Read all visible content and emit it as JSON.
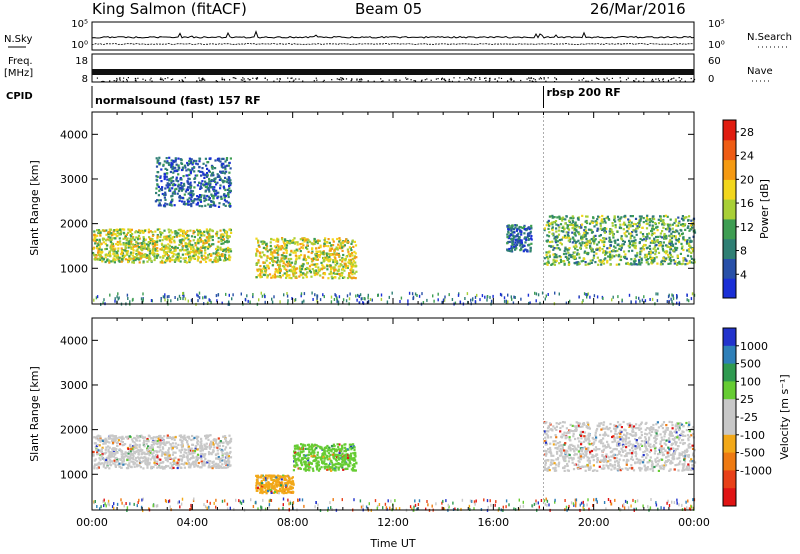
{
  "header": {
    "title": "King Salmon (fitACF)",
    "beam": "Beam 05",
    "date": "26/Mar/2016"
  },
  "summary": {
    "nsky_label": "N.Sky",
    "nsearch_label": "N.Search",
    "noise_ticks": [
      "10^5",
      "10^0"
    ],
    "freq_label": "Freq.",
    "freq_unit": "[MHz]",
    "freq_ticks": [
      "18",
      "8"
    ],
    "nave_label": "Nave",
    "nave_ticks": [
      "60",
      "0"
    ],
    "cpid_label": "CPID",
    "programs": [
      {
        "name": "normalsound (fast)",
        "cpid": "157",
        "tag": "RF",
        "label": "normalsound (fast) 157 RF",
        "start": "00:00"
      },
      {
        "name": "rbsp",
        "cpid": "200",
        "tag": "RF",
        "label": "rbsp 200 RF",
        "start": "18:00"
      }
    ]
  },
  "colors": {
    "power": [
      "#1a2fd6",
      "#2850a8",
      "#2f7f74",
      "#3e9d52",
      "#a8cf36",
      "#f2d61c",
      "#f59a12",
      "#ee5c14",
      "#e01c10"
    ],
    "velocity": [
      "#2233cc",
      "#2e7fb8",
      "#2f9a50",
      "#66cc33",
      "#c8c8c8",
      "#c8c8c8",
      "#f2a818",
      "#ee7a12",
      "#e84018",
      "#e01414"
    ]
  },
  "chart_data": [
    {
      "type": "heatmap",
      "name": "power",
      "xlabel": "",
      "ylabel": "Slant Range [km]",
      "xlim": [
        "00:00",
        "24:00"
      ],
      "ylim": [
        200,
        4500
      ],
      "yticks": [
        "1000",
        "2000",
        "3000",
        "4000"
      ],
      "grid": false,
      "colorbar": {
        "label": "Power [dB]",
        "ticks": [
          "4",
          "8",
          "12",
          "16",
          "20",
          "24",
          "28"
        ],
        "range": [
          0,
          30
        ]
      },
      "regions": [
        {
          "from": "00:00",
          "to": "05:30",
          "range_km": [
            1150,
            1900
          ],
          "level_db": 16
        },
        {
          "from": "02:30",
          "to": "05:30",
          "range_km": [
            2400,
            3500
          ],
          "level_db": 6
        },
        {
          "from": "06:30",
          "to": "10:30",
          "range_km": [
            800,
            1700
          ],
          "level_db": 17
        },
        {
          "from": "16:30",
          "to": "17:30",
          "range_km": [
            1400,
            2000
          ],
          "level_db": 6
        },
        {
          "from": "18:00",
          "to": "24:00",
          "range_km": [
            1100,
            2200
          ],
          "level_db": 12
        }
      ]
    },
    {
      "type": "heatmap",
      "name": "velocity",
      "xlabel": "Time UT",
      "ylabel": "Slant Range [km]",
      "xlim": [
        "00:00",
        "24:00"
      ],
      "ylim": [
        200,
        4500
      ],
      "xticks": [
        "00:00",
        "04:00",
        "08:00",
        "12:00",
        "16:00",
        "20:00",
        "00:00"
      ],
      "yticks": [
        "1000",
        "2000",
        "3000",
        "4000"
      ],
      "grid": false,
      "colorbar": {
        "label": "Velocity [m s^-1]",
        "ticks": [
          "1000",
          "500",
          "100",
          "25",
          "-25",
          "-100",
          "-500",
          "-1000"
        ]
      },
      "regions": [
        {
          "from": "00:00",
          "to": "05:30",
          "range_km": [
            1150,
            1900
          ],
          "velocity_ms": 0
        },
        {
          "from": "06:30",
          "to": "08:00",
          "range_km": [
            600,
            1000
          ],
          "velocity_ms": -80
        },
        {
          "from": "08:00",
          "to": "10:30",
          "range_km": [
            1100,
            1700
          ],
          "velocity_ms": 100
        },
        {
          "from": "18:00",
          "to": "24:00",
          "range_km": [
            1100,
            2200
          ],
          "velocity_ms": 0
        }
      ]
    }
  ]
}
